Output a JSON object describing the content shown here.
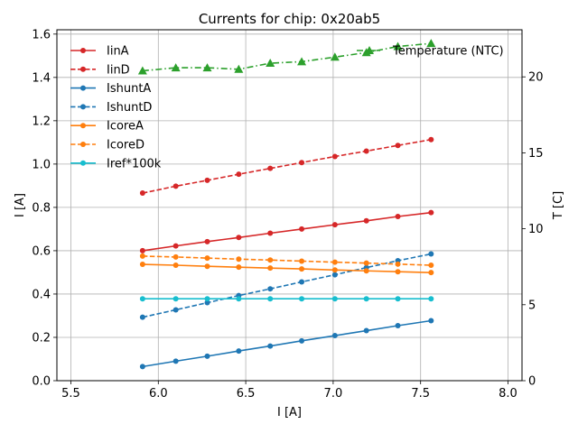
{
  "chart_data": {
    "type": "line",
    "title": "Currents for chip: 0x20ab5",
    "xlabel": "I [A]",
    "ylabel": "I [A]",
    "ylabel_right": "T [C]",
    "xlim": [
      5.42,
      8.08
    ],
    "ylim": [
      0.0,
      1.62
    ],
    "ylim_right": [
      0.0,
      23.1
    ],
    "xticks": [
      "5.5",
      "6.0",
      "6.5",
      "7.0",
      "7.5",
      "8.0"
    ],
    "yticks": [
      "0.0",
      "0.2",
      "0.4",
      "0.6",
      "0.8",
      "1.0",
      "1.2",
      "1.4",
      "1.6"
    ],
    "yticks_right": [
      "0",
      "5",
      "10",
      "15",
      "20"
    ],
    "grid": true,
    "x": [
      5.91,
      6.1,
      6.28,
      6.46,
      6.64,
      6.82,
      7.01,
      7.19,
      7.37,
      7.56
    ],
    "series": [
      {
        "name": "IinA",
        "axis": "left",
        "color": "#d62728",
        "dash": "solid",
        "marker": "circle",
        "values": [
          0.6,
          0.622,
          0.642,
          0.661,
          0.681,
          0.7,
          0.72,
          0.738,
          0.758,
          0.776
        ]
      },
      {
        "name": "IinD",
        "axis": "left",
        "color": "#d62728",
        "dash": "dashed",
        "marker": "circle",
        "values": [
          0.866,
          0.898,
          0.925,
          0.953,
          0.98,
          1.007,
          1.035,
          1.06,
          1.086,
          1.113
        ]
      },
      {
        "name": "IshuntA",
        "axis": "left",
        "color": "#1f77b4",
        "dash": "solid",
        "marker": "circle",
        "values": [
          0.065,
          0.09,
          0.113,
          0.137,
          0.16,
          0.184,
          0.208,
          0.231,
          0.254,
          0.277
        ]
      },
      {
        "name": "IshuntD",
        "axis": "left",
        "color": "#1f77b4",
        "dash": "dashed",
        "marker": "circle",
        "values": [
          0.293,
          0.327,
          0.36,
          0.393,
          0.424,
          0.456,
          0.489,
          0.522,
          0.554,
          0.585
        ]
      },
      {
        "name": "IcoreA",
        "axis": "left",
        "color": "#ff7f0e",
        "dash": "solid",
        "marker": "circle",
        "values": [
          0.537,
          0.533,
          0.528,
          0.524,
          0.52,
          0.516,
          0.511,
          0.507,
          0.503,
          0.499
        ]
      },
      {
        "name": "IcoreD",
        "axis": "left",
        "color": "#ff7f0e",
        "dash": "dashed",
        "marker": "circle",
        "values": [
          0.575,
          0.571,
          0.566,
          0.561,
          0.557,
          0.552,
          0.547,
          0.543,
          0.538,
          0.533
        ]
      },
      {
        "name": "Iref*100k",
        "axis": "left",
        "color": "#17becf",
        "dash": "solid",
        "marker": "circle",
        "values": [
          0.378,
          0.378,
          0.378,
          0.378,
          0.378,
          0.378,
          0.378,
          0.378,
          0.378,
          0.378
        ]
      },
      {
        "name": "Temperature (NTC)",
        "axis": "right",
        "color": "#2ca02c",
        "dash": "dashdot",
        "marker": "triangle",
        "values": [
          20.4,
          20.6,
          20.6,
          20.5,
          20.9,
          21.0,
          21.3,
          21.6,
          22.0,
          22.2
        ]
      }
    ],
    "legend_left": [
      "IinA",
      "IinD",
      "IshuntA",
      "IshuntD",
      "IcoreA",
      "IcoreD",
      "Iref*100k"
    ],
    "legend_right": [
      "Temperature (NTC)"
    ]
  }
}
